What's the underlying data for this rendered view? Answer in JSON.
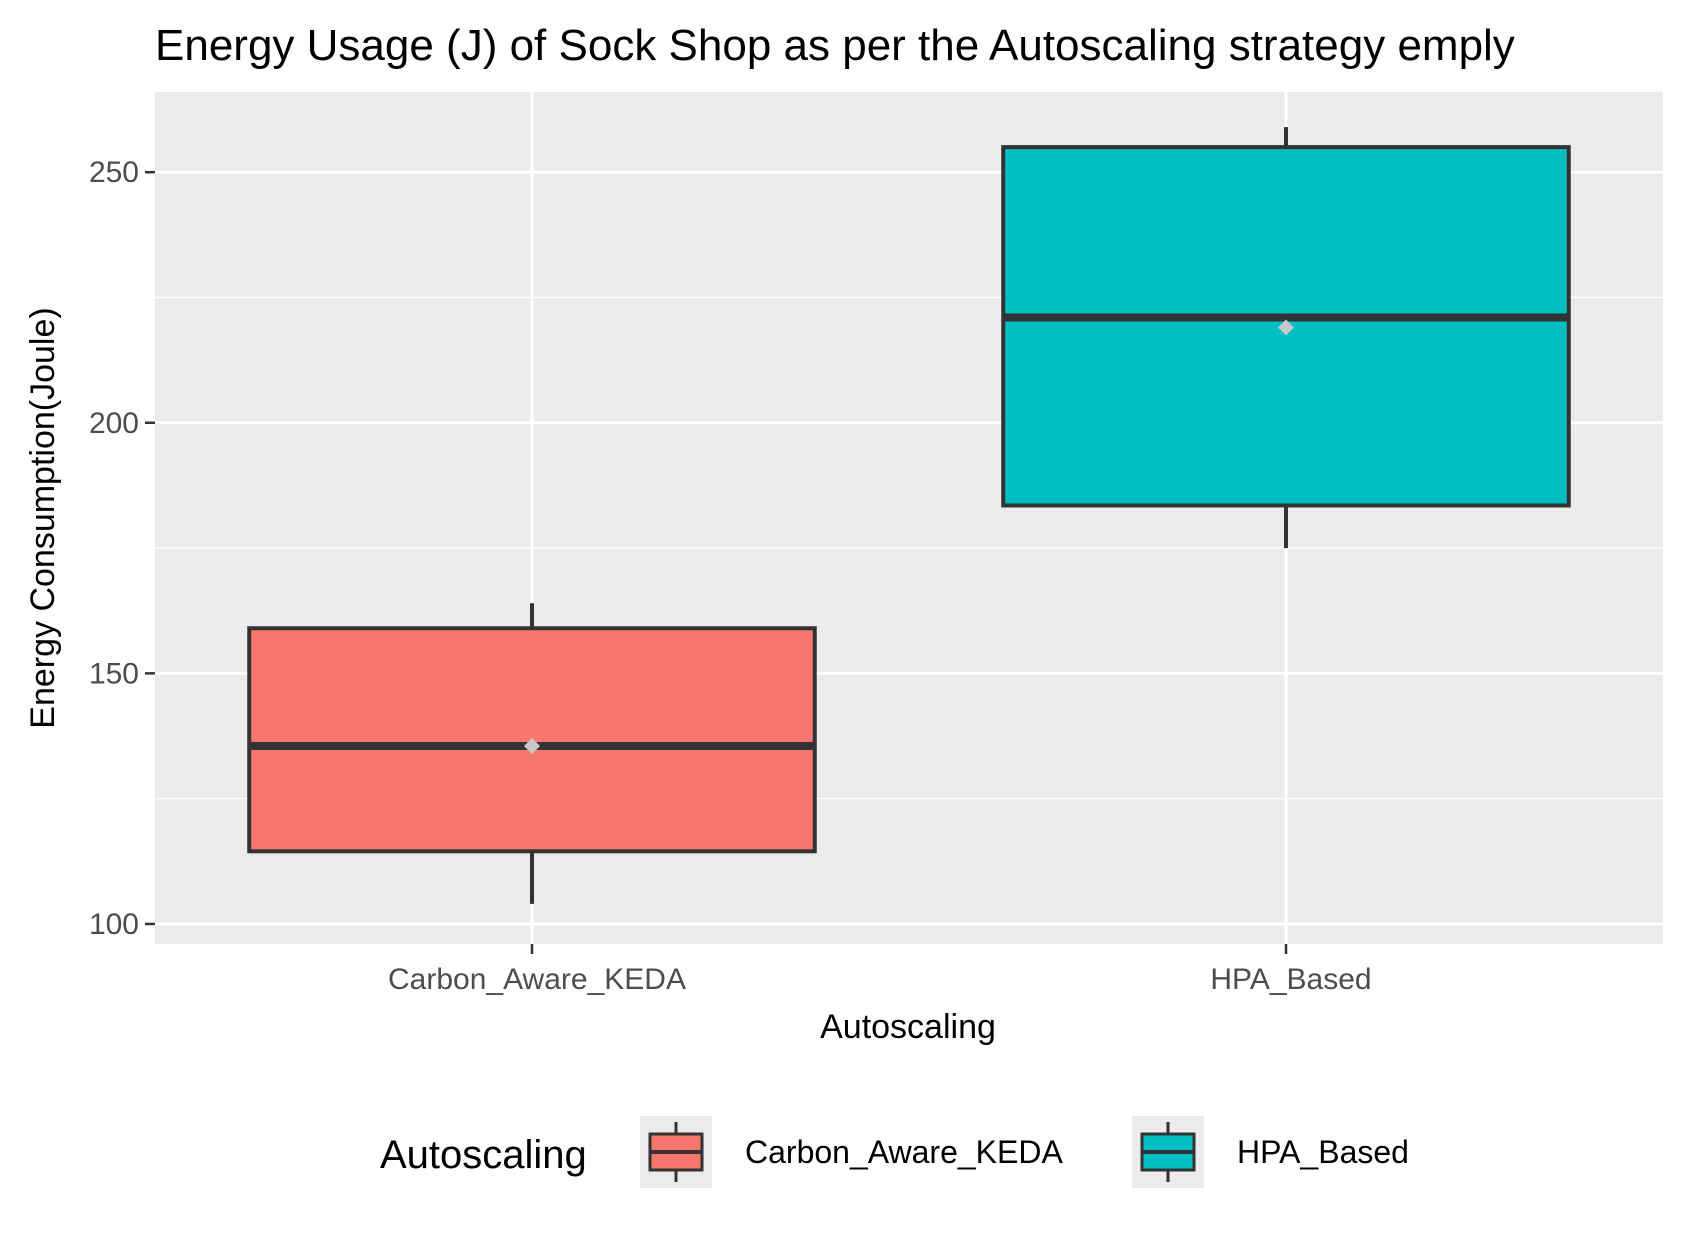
{
  "chart_data": {
    "type": "box",
    "title": "Energy Usage (J) of Sock Shop as per the Autoscaling strategy emply",
    "xlabel": "Autoscaling",
    "ylabel": "Energy Consumption(Joule)",
    "categories": [
      "Carbon_Aware_KEDA",
      "HPA_Based"
    ],
    "ylim": [
      96,
      266
    ],
    "y_ticks": [
      100,
      150,
      200,
      250
    ],
    "grid": true,
    "boxes": [
      {
        "name": "Carbon_Aware_KEDA",
        "color": "#F8766D",
        "whisker_low": 104,
        "q1": 114.5,
        "median": 135.5,
        "q3": 159,
        "whisker_high": 164,
        "mean": 135.5
      },
      {
        "name": "HPA_Based",
        "color": "#00BFC4",
        "whisker_low": 175,
        "q1": 183.5,
        "median": 221,
        "q3": 255,
        "whisker_high": 259,
        "mean": 219
      }
    ],
    "legend": {
      "title": "Autoscaling",
      "position": "bottom",
      "entries": [
        "Carbon_Aware_KEDA",
        "HPA_Based"
      ]
    }
  },
  "colors": {
    "panel_background": "#EBEBEB",
    "grid": "#FFFFFF",
    "box_outline": "#333333",
    "mean_marker": "#C8C8C8",
    "tick_text": "#4D4D4D"
  }
}
